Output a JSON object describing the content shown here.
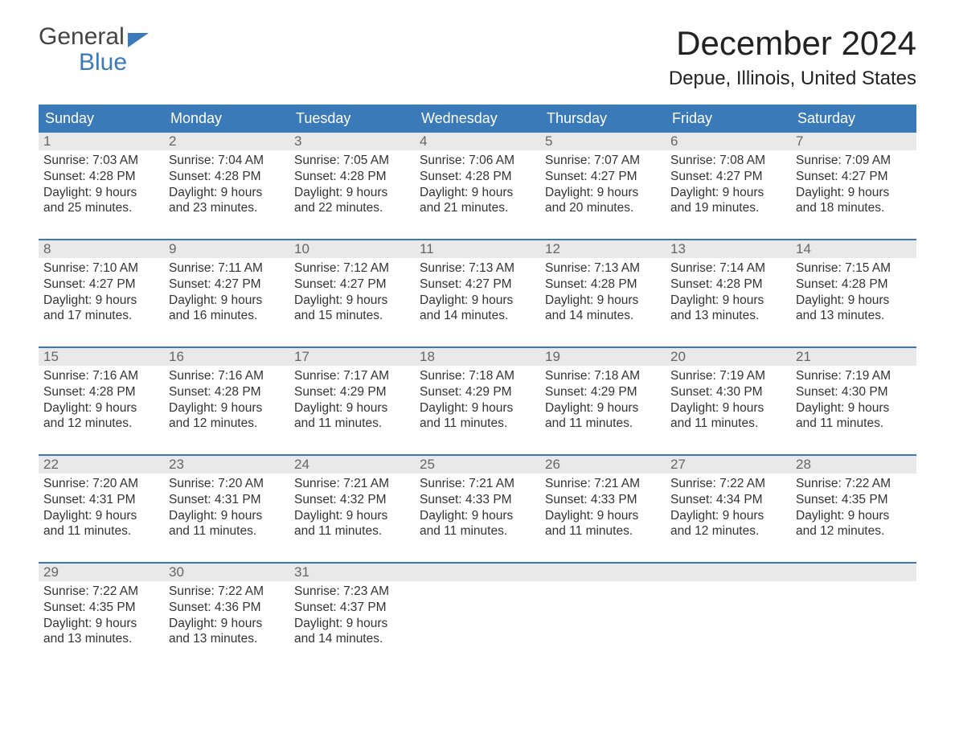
{
  "brand": {
    "word1": "General",
    "word2": "Blue"
  },
  "title": "December 2024",
  "location": "Depue, Illinois, United States",
  "colors": {
    "accent": "#3b7ab8",
    "headerText": "#ffffff",
    "dayNumBg": "#e9e9e9",
    "bodyText": "#333333"
  },
  "dayNames": [
    "Sunday",
    "Monday",
    "Tuesday",
    "Wednesday",
    "Thursday",
    "Friday",
    "Saturday"
  ],
  "labels": {
    "sunrise": "Sunrise:",
    "sunset": "Sunset:",
    "daylight": "Daylight:"
  },
  "weeks": [
    [
      {
        "n": "1",
        "sr": "7:03 AM",
        "ss": "4:28 PM",
        "d1": "9 hours",
        "d2": "and 25 minutes."
      },
      {
        "n": "2",
        "sr": "7:04 AM",
        "ss": "4:28 PM",
        "d1": "9 hours",
        "d2": "and 23 minutes."
      },
      {
        "n": "3",
        "sr": "7:05 AM",
        "ss": "4:28 PM",
        "d1": "9 hours",
        "d2": "and 22 minutes."
      },
      {
        "n": "4",
        "sr": "7:06 AM",
        "ss": "4:28 PM",
        "d1": "9 hours",
        "d2": "and 21 minutes."
      },
      {
        "n": "5",
        "sr": "7:07 AM",
        "ss": "4:27 PM",
        "d1": "9 hours",
        "d2": "and 20 minutes."
      },
      {
        "n": "6",
        "sr": "7:08 AM",
        "ss": "4:27 PM",
        "d1": "9 hours",
        "d2": "and 19 minutes."
      },
      {
        "n": "7",
        "sr": "7:09 AM",
        "ss": "4:27 PM",
        "d1": "9 hours",
        "d2": "and 18 minutes."
      }
    ],
    [
      {
        "n": "8",
        "sr": "7:10 AM",
        "ss": "4:27 PM",
        "d1": "9 hours",
        "d2": "and 17 minutes."
      },
      {
        "n": "9",
        "sr": "7:11 AM",
        "ss": "4:27 PM",
        "d1": "9 hours",
        "d2": "and 16 minutes."
      },
      {
        "n": "10",
        "sr": "7:12 AM",
        "ss": "4:27 PM",
        "d1": "9 hours",
        "d2": "and 15 minutes."
      },
      {
        "n": "11",
        "sr": "7:13 AM",
        "ss": "4:27 PM",
        "d1": "9 hours",
        "d2": "and 14 minutes."
      },
      {
        "n": "12",
        "sr": "7:13 AM",
        "ss": "4:28 PM",
        "d1": "9 hours",
        "d2": "and 14 minutes."
      },
      {
        "n": "13",
        "sr": "7:14 AM",
        "ss": "4:28 PM",
        "d1": "9 hours",
        "d2": "and 13 minutes."
      },
      {
        "n": "14",
        "sr": "7:15 AM",
        "ss": "4:28 PM",
        "d1": "9 hours",
        "d2": "and 13 minutes."
      }
    ],
    [
      {
        "n": "15",
        "sr": "7:16 AM",
        "ss": "4:28 PM",
        "d1": "9 hours",
        "d2": "and 12 minutes."
      },
      {
        "n": "16",
        "sr": "7:16 AM",
        "ss": "4:28 PM",
        "d1": "9 hours",
        "d2": "and 12 minutes."
      },
      {
        "n": "17",
        "sr": "7:17 AM",
        "ss": "4:29 PM",
        "d1": "9 hours",
        "d2": "and 11 minutes."
      },
      {
        "n": "18",
        "sr": "7:18 AM",
        "ss": "4:29 PM",
        "d1": "9 hours",
        "d2": "and 11 minutes."
      },
      {
        "n": "19",
        "sr": "7:18 AM",
        "ss": "4:29 PM",
        "d1": "9 hours",
        "d2": "and 11 minutes."
      },
      {
        "n": "20",
        "sr": "7:19 AM",
        "ss": "4:30 PM",
        "d1": "9 hours",
        "d2": "and 11 minutes."
      },
      {
        "n": "21",
        "sr": "7:19 AM",
        "ss": "4:30 PM",
        "d1": "9 hours",
        "d2": "and 11 minutes."
      }
    ],
    [
      {
        "n": "22",
        "sr": "7:20 AM",
        "ss": "4:31 PM",
        "d1": "9 hours",
        "d2": "and 11 minutes."
      },
      {
        "n": "23",
        "sr": "7:20 AM",
        "ss": "4:31 PM",
        "d1": "9 hours",
        "d2": "and 11 minutes."
      },
      {
        "n": "24",
        "sr": "7:21 AM",
        "ss": "4:32 PM",
        "d1": "9 hours",
        "d2": "and 11 minutes."
      },
      {
        "n": "25",
        "sr": "7:21 AM",
        "ss": "4:33 PM",
        "d1": "9 hours",
        "d2": "and 11 minutes."
      },
      {
        "n": "26",
        "sr": "7:21 AM",
        "ss": "4:33 PM",
        "d1": "9 hours",
        "d2": "and 11 minutes."
      },
      {
        "n": "27",
        "sr": "7:22 AM",
        "ss": "4:34 PM",
        "d1": "9 hours",
        "d2": "and 12 minutes."
      },
      {
        "n": "28",
        "sr": "7:22 AM",
        "ss": "4:35 PM",
        "d1": "9 hours",
        "d2": "and 12 minutes."
      }
    ],
    [
      {
        "n": "29",
        "sr": "7:22 AM",
        "ss": "4:35 PM",
        "d1": "9 hours",
        "d2": "and 13 minutes."
      },
      {
        "n": "30",
        "sr": "7:22 AM",
        "ss": "4:36 PM",
        "d1": "9 hours",
        "d2": "and 13 minutes."
      },
      {
        "n": "31",
        "sr": "7:23 AM",
        "ss": "4:37 PM",
        "d1": "9 hours",
        "d2": "and 14 minutes."
      },
      null,
      null,
      null,
      null
    ]
  ]
}
